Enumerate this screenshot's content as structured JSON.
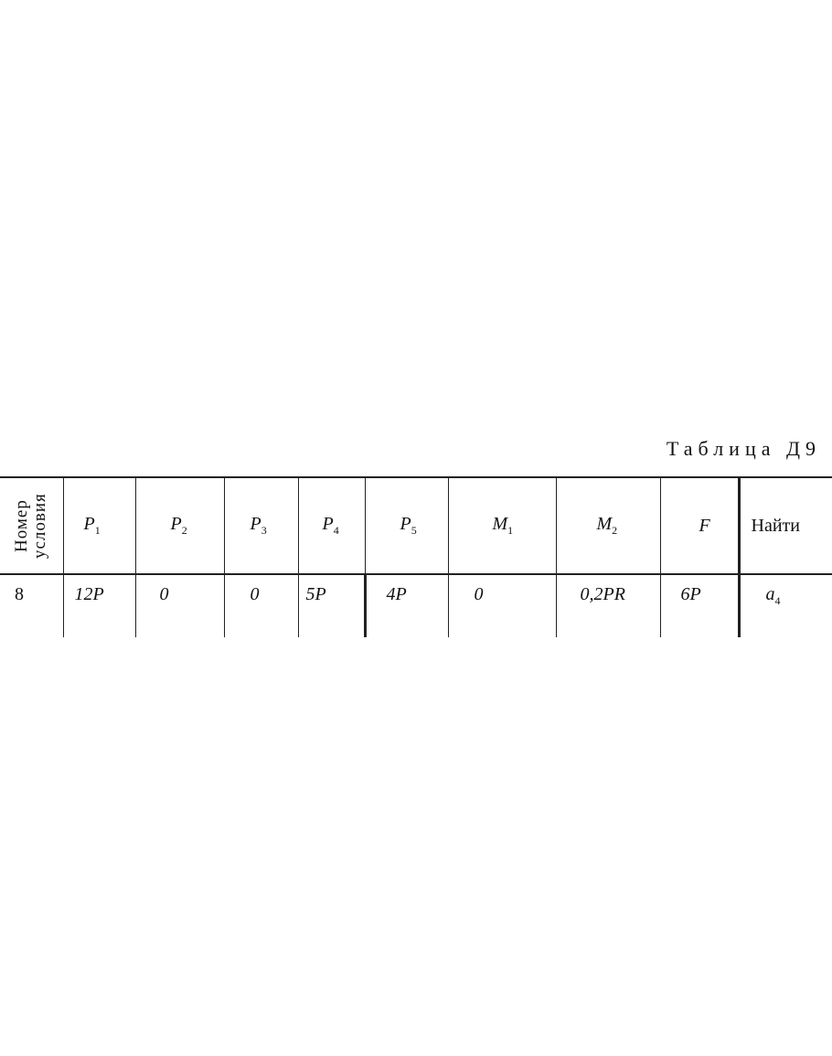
{
  "title": "Таблица Д9",
  "table": {
    "corner_header": [
      "Номер",
      "условия"
    ],
    "headers": [
      {
        "main": "P",
        "sub": "1"
      },
      {
        "main": "P",
        "sub": "2"
      },
      {
        "main": "P",
        "sub": "3"
      },
      {
        "main": "P",
        "sub": "4"
      },
      {
        "main": "P",
        "sub": "5"
      },
      {
        "main": "M",
        "sub": "1"
      },
      {
        "main": "M",
        "sub": "2"
      },
      {
        "main": "F",
        "sub": ""
      },
      {
        "main": "Найти",
        "sub": ""
      }
    ],
    "rows": [
      {
        "number": "8",
        "cells": [
          "12P",
          "0",
          "0",
          "5P",
          "4P",
          "0",
          "0,2PR",
          "6P"
        ],
        "find": {
          "main": "a",
          "sub": "4"
        }
      }
    ]
  }
}
